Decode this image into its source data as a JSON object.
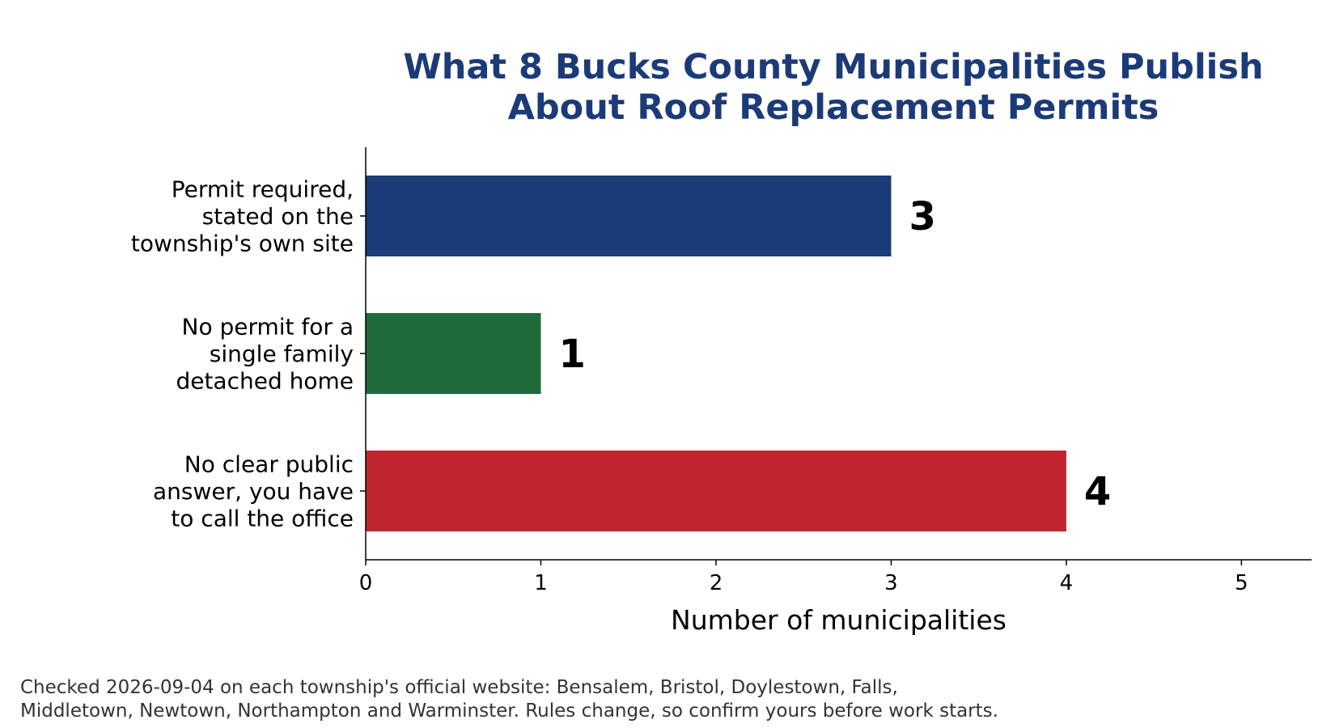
{
  "colors": {
    "title": "#1b3a78",
    "axis": "#000000",
    "footnote": "#333333"
  },
  "chart_data": {
    "type": "bar",
    "orientation": "horizontal",
    "title_lines": [
      "What 8 Bucks County Municipalities Publish",
      "About Roof Replacement Permits"
    ],
    "xlabel": "Number of municipalities",
    "ylabel": "",
    "xlim": [
      0,
      5.4
    ],
    "xticks": [
      "0",
      "1",
      "2",
      "3",
      "4",
      "5"
    ],
    "grid": false,
    "categories": [
      {
        "label_lines": [
          "Permit required,",
          "stated on the",
          "township's own site"
        ],
        "value": 3,
        "value_label": "3",
        "color": "#1b3a78"
      },
      {
        "label_lines": [
          "No permit for a",
          "single family",
          "detached home"
        ],
        "value": 1,
        "value_label": "1",
        "color": "#1f6b3c"
      },
      {
        "label_lines": [
          "No clear public",
          "answer, you have",
          "to call the office"
        ],
        "value": 4,
        "value_label": "4",
        "color": "#c0262f"
      }
    ]
  },
  "footnote_lines": [
    "Checked 2026-09-04 on each township's official website: Bensalem, Bristol, Doylestown, Falls,",
    "Middletown, Newtown, Northampton and Warminster. Rules change, so confirm yours before work starts."
  ]
}
